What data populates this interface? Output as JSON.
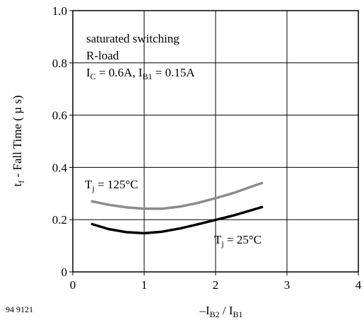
{
  "chart_data": {
    "type": "line",
    "xlabel": "–I",
    "xlabel_sub1": "B2",
    "xlabel_mid": " / I",
    "xlabel_sub2": "B1",
    "ylabel": "t",
    "ylabel_sub": "f",
    "ylabel_rest": " - Fall Time  ( µ s)",
    "xlim": [
      0,
      4
    ],
    "ylim": [
      0,
      1.0
    ],
    "x_ticks": [
      0,
      1,
      2,
      3,
      4
    ],
    "x_tick_labels": [
      "0",
      "1",
      "2",
      "3",
      "4"
    ],
    "y_ticks": [
      0,
      0.2,
      0.4,
      0.6,
      0.8,
      1.0
    ],
    "y_tick_labels": [
      "0",
      "0.2",
      "0.4",
      "0.6",
      "0.8",
      "1.0"
    ],
    "grid": true,
    "annotation_lines": [
      {
        "text": "saturated switching"
      },
      {
        "text": "R-load"
      },
      {
        "parts": [
          [
            "I",
            ""
          ],
          [
            "C",
            "sub"
          ],
          [
            " = 0.6A, I",
            ""
          ],
          [
            "B1",
            "sub"
          ],
          [
            " = 0.15A",
            ""
          ]
        ]
      }
    ],
    "series": [
      {
        "name_parts": [
          [
            "T",
            ""
          ],
          [
            "j",
            "sub"
          ],
          [
            " = 125°C",
            ""
          ]
        ],
        "color": "#8c8c8c",
        "x": [
          0.27,
          0.5,
          0.75,
          1.0,
          1.25,
          1.5,
          1.75,
          2.0,
          2.25,
          2.5,
          2.65
        ],
        "y": [
          0.27,
          0.257,
          0.247,
          0.242,
          0.242,
          0.25,
          0.264,
          0.282,
          0.302,
          0.326,
          0.34
        ]
      },
      {
        "name_parts": [
          [
            "T",
            ""
          ],
          [
            "j",
            "sub"
          ],
          [
            " = 25°C",
            ""
          ]
        ],
        "color": "#000000",
        "x": [
          0.27,
          0.5,
          0.75,
          1.0,
          1.25,
          1.5,
          1.75,
          2.0,
          2.25,
          2.5,
          2.65
        ],
        "y": [
          0.183,
          0.164,
          0.152,
          0.148,
          0.154,
          0.166,
          0.182,
          0.199,
          0.216,
          0.236,
          0.248
        ]
      }
    ]
  },
  "footer": {
    "figure_id": "94 9121"
  }
}
